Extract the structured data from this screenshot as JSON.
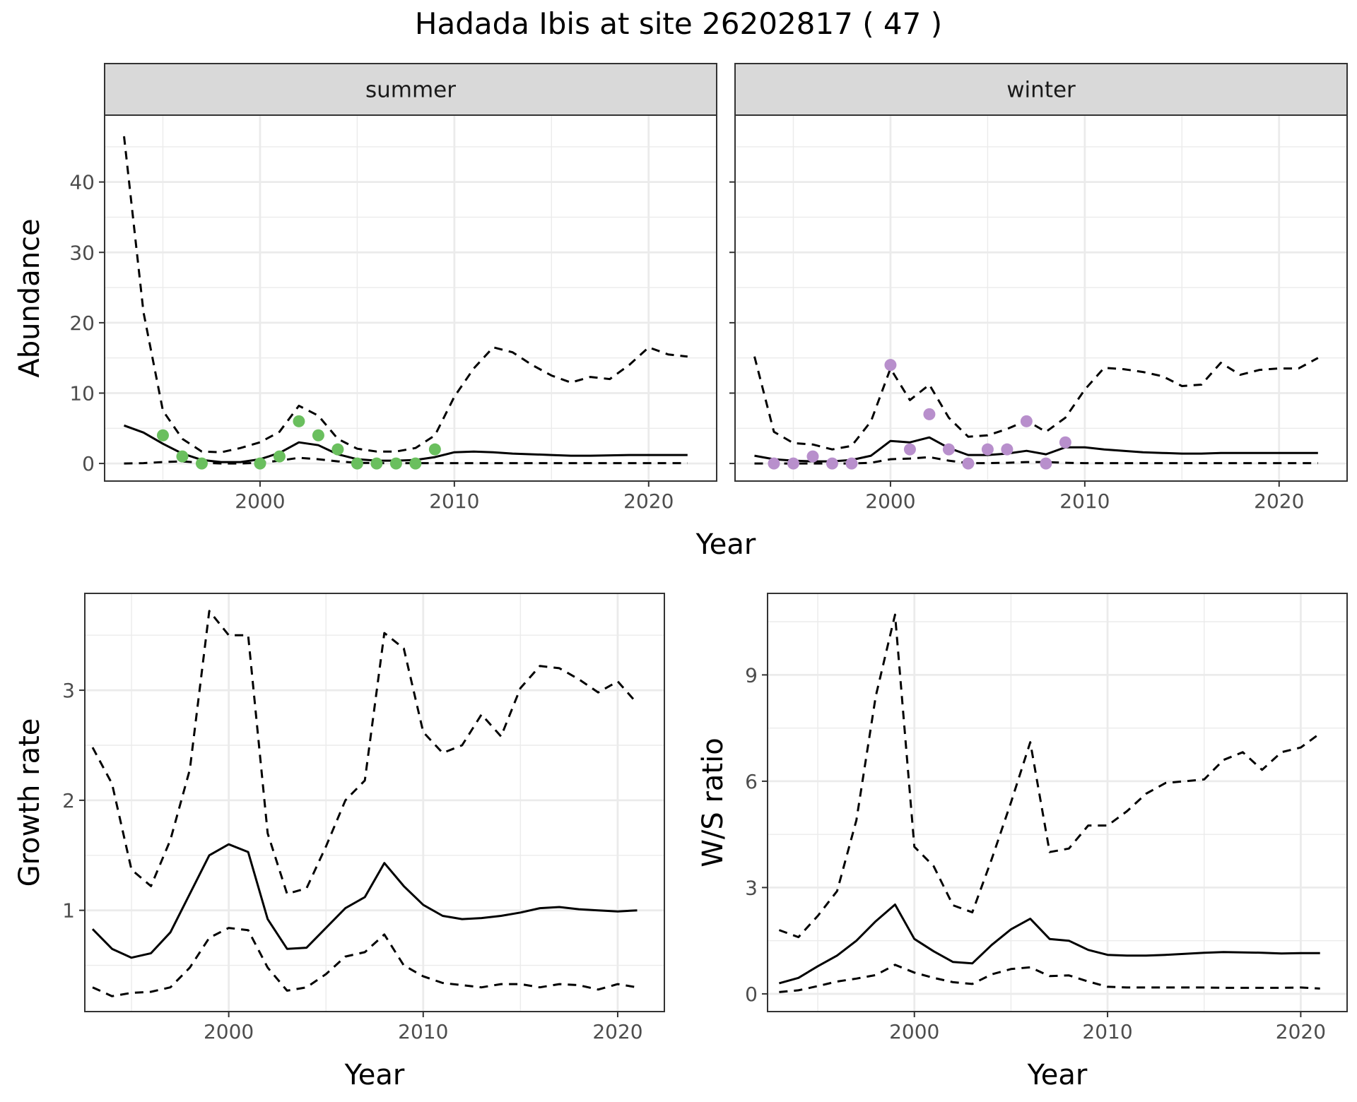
{
  "title": "Hadada Ibis at site 26202817 ( 47 )",
  "colors": {
    "summer_points": "#6abf5e",
    "winter_points": "#b88fcc",
    "lines": "#000000",
    "strip_background": "#d9d9d9",
    "grid": "#ebebeb"
  },
  "chart_data": [
    {
      "type": "line",
      "facet": "summer",
      "xlabel": "Year",
      "ylabel": "Abundance",
      "xlim": [
        1992,
        2023.5
      ],
      "ylim": [
        -2.5,
        49.5
      ],
      "xticks": [
        2000,
        2010,
        2020
      ],
      "yticks": [
        0,
        10,
        20,
        30,
        40
      ],
      "grid": true,
      "series": [
        {
          "role": "estimate",
          "style": "solid",
          "x": [
            1993,
            1994,
            1995,
            1996,
            1997,
            1998,
            1999,
            2000,
            2001,
            2002,
            2003,
            2004,
            2005,
            2006,
            2007,
            2008,
            2009,
            2010,
            2011,
            2012,
            2013,
            2014,
            2015,
            2016,
            2017,
            2018,
            2019,
            2020,
            2021,
            2022
          ],
          "y": [
            5.4,
            4.4,
            2.8,
            1.4,
            0.5,
            0.2,
            0.2,
            0.6,
            1.5,
            3.0,
            2.6,
            1.3,
            0.6,
            0.4,
            0.4,
            0.5,
            0.9,
            1.6,
            1.7,
            1.6,
            1.4,
            1.3,
            1.2,
            1.1,
            1.1,
            1.15,
            1.2,
            1.2,
            1.2,
            1.2
          ]
        },
        {
          "role": "upper",
          "style": "dashed",
          "x": [
            1993,
            1994,
            1995,
            1996,
            1997,
            1998,
            1999,
            2000,
            2001,
            2002,
            2003,
            2004,
            2005,
            2006,
            2007,
            2008,
            2009,
            2010,
            2011,
            2012,
            2013,
            2014,
            2015,
            2016,
            2017,
            2018,
            2019,
            2020,
            2021,
            2022
          ],
          "y": [
            46.5,
            21.5,
            7.5,
            3.5,
            1.7,
            1.6,
            2.2,
            3.0,
            4.5,
            8.2,
            6.8,
            3.5,
            2.1,
            1.7,
            1.7,
            2.2,
            4.0,
            9.5,
            13.5,
            16.5,
            15.8,
            14.0,
            12.5,
            11.5,
            12.3,
            12.0,
            14.0,
            16.5,
            15.5,
            15.2
          ]
        },
        {
          "role": "lower",
          "style": "dashed",
          "x": [
            1993,
            1994,
            1995,
            1996,
            1997,
            1998,
            1999,
            2000,
            2001,
            2002,
            2003,
            2004,
            2005,
            2006,
            2007,
            2008,
            2009,
            2010,
            2011,
            2012,
            2013,
            2014,
            2015,
            2016,
            2017,
            2018,
            2019,
            2020,
            2021,
            2022
          ],
          "y": [
            0,
            0.05,
            0.2,
            0.3,
            0.1,
            0,
            0,
            0.1,
            0.4,
            0.8,
            0.6,
            0.3,
            0.1,
            0.05,
            0.05,
            0.05,
            0.05,
            0.05,
            0.05,
            0.05,
            0.05,
            0.05,
            0.05,
            0.05,
            0.05,
            0.05,
            0.05,
            0.05,
            0.05,
            0.05
          ]
        }
      ],
      "points": {
        "x": [
          1995,
          1996,
          1997,
          2000,
          2001,
          2002,
          2003,
          2004,
          2005,
          2006,
          2007,
          2008,
          2009
        ],
        "y": [
          4,
          1,
          0,
          0,
          1,
          6,
          4,
          2,
          0,
          0,
          0,
          0,
          2
        ]
      }
    },
    {
      "type": "line",
      "facet": "winter",
      "xlabel": "Year",
      "ylabel": "Abundance",
      "xlim": [
        1992,
        2023.5
      ],
      "ylim": [
        -2.5,
        49.5
      ],
      "xticks": [
        2000,
        2010,
        2020
      ],
      "yticks": [
        0,
        10,
        20,
        30,
        40
      ],
      "grid": true,
      "series": [
        {
          "role": "estimate",
          "style": "solid",
          "x": [
            1993,
            1994,
            1995,
            1996,
            1997,
            1998,
            1999,
            2000,
            2001,
            2002,
            2003,
            2004,
            2005,
            2006,
            2007,
            2008,
            2009,
            2010,
            2011,
            2012,
            2013,
            2014,
            2015,
            2016,
            2017,
            2018,
            2019,
            2020,
            2021,
            2022
          ],
          "y": [
            1.1,
            0.6,
            0.4,
            0.3,
            0.3,
            0.5,
            1.1,
            3.2,
            3.0,
            3.7,
            2.2,
            1.2,
            1.2,
            1.4,
            1.8,
            1.3,
            2.3,
            2.3,
            2.0,
            1.8,
            1.6,
            1.5,
            1.4,
            1.4,
            1.5,
            1.5,
            1.5,
            1.5,
            1.5,
            1.5
          ]
        },
        {
          "role": "upper",
          "style": "dashed",
          "x": [
            1993,
            1994,
            1995,
            1996,
            1997,
            1998,
            1999,
            2000,
            2001,
            2002,
            2003,
            2004,
            2005,
            2006,
            2007,
            2008,
            2009,
            2010,
            2011,
            2012,
            2013,
            2014,
            2015,
            2016,
            2017,
            2018,
            2019,
            2020,
            2021,
            2022
          ],
          "y": [
            15.2,
            4.5,
            2.9,
            2.7,
            2.0,
            2.5,
            6.0,
            13.5,
            9.0,
            11.2,
            6.5,
            3.8,
            4.0,
            4.9,
            6.1,
            4.5,
            6.5,
            10.5,
            13.6,
            13.4,
            13.0,
            12.4,
            11.0,
            11.2,
            14.3,
            12.6,
            13.3,
            13.5,
            13.5,
            15.0
          ]
        },
        {
          "role": "lower",
          "style": "dashed",
          "x": [
            1993,
            1994,
            1995,
            1996,
            1997,
            1998,
            1999,
            2000,
            2001,
            2002,
            2003,
            2004,
            2005,
            2006,
            2007,
            2008,
            2009,
            2010,
            2011,
            2012,
            2013,
            2014,
            2015,
            2016,
            2017,
            2018,
            2019,
            2020,
            2021,
            2022
          ],
          "y": [
            0,
            0,
            0,
            0,
            0,
            0,
            0.1,
            0.6,
            0.7,
            0.9,
            0.4,
            0.05,
            0.05,
            0.1,
            0.2,
            0.2,
            0.1,
            0.05,
            0.05,
            0.05,
            0.05,
            0.05,
            0.05,
            0.05,
            0.05,
            0.05,
            0.05,
            0.05,
            0.05,
            0.05
          ]
        }
      ],
      "points": {
        "x": [
          1994,
          1995,
          1996,
          1997,
          1998,
          2000,
          2001,
          2002,
          2003,
          2004,
          2005,
          2006,
          2007,
          2008,
          2009
        ],
        "y": [
          0,
          0,
          1,
          0,
          0,
          14,
          2,
          7,
          2,
          0,
          2,
          2,
          6,
          0,
          3
        ]
      }
    },
    {
      "type": "line",
      "xlabel": "Year",
      "ylabel": "Growth rate",
      "xlim": [
        1992.6,
        2022.4
      ],
      "ylim": [
        0.08,
        3.88
      ],
      "xticks": [
        2000,
        2010,
        2020
      ],
      "yticks": [
        1,
        2,
        3
      ],
      "grid": true,
      "series": [
        {
          "role": "estimate",
          "style": "solid",
          "x": [
            1993,
            1994,
            1995,
            1996,
            1997,
            1998,
            1999,
            2000,
            2001,
            2002,
            2003,
            2004,
            2005,
            2006,
            2007,
            2008,
            2009,
            2010,
            2011,
            2012,
            2013,
            2014,
            2015,
            2016,
            2017,
            2018,
            2019,
            2020,
            2021
          ],
          "y": [
            0.83,
            0.65,
            0.57,
            0.61,
            0.8,
            1.15,
            1.5,
            1.6,
            1.53,
            0.92,
            0.65,
            0.66,
            0.84,
            1.02,
            1.12,
            1.43,
            1.22,
            1.05,
            0.95,
            0.92,
            0.93,
            0.95,
            0.98,
            1.02,
            1.03,
            1.01,
            1.0,
            0.99,
            1.0
          ]
        },
        {
          "role": "upper",
          "style": "dashed",
          "x": [
            1993,
            1994,
            1995,
            1996,
            1997,
            1998,
            1999,
            2000,
            2001,
            2002,
            2003,
            2004,
            2005,
            2006,
            2007,
            2008,
            2009,
            2010,
            2011,
            2012,
            2013,
            2014,
            2015,
            2016,
            2017,
            2018,
            2019,
            2020,
            2021
          ],
          "y": [
            2.48,
            2.15,
            1.37,
            1.22,
            1.64,
            2.28,
            3.72,
            3.5,
            3.5,
            1.7,
            1.15,
            1.2,
            1.58,
            2.0,
            2.18,
            3.52,
            3.38,
            2.62,
            2.43,
            2.5,
            2.78,
            2.58,
            3.02,
            3.22,
            3.2,
            3.1,
            2.98,
            3.08,
            2.88
          ]
        },
        {
          "role": "lower",
          "style": "dashed",
          "x": [
            1993,
            1994,
            1995,
            1996,
            1997,
            1998,
            1999,
            2000,
            2001,
            2002,
            2003,
            2004,
            2005,
            2006,
            2007,
            2008,
            2009,
            2010,
            2011,
            2012,
            2013,
            2014,
            2015,
            2016,
            2017,
            2018,
            2019,
            2020,
            2021
          ],
          "y": [
            0.3,
            0.22,
            0.25,
            0.26,
            0.3,
            0.48,
            0.75,
            0.84,
            0.82,
            0.48,
            0.27,
            0.3,
            0.42,
            0.58,
            0.62,
            0.78,
            0.5,
            0.4,
            0.34,
            0.32,
            0.3,
            0.33,
            0.33,
            0.3,
            0.33,
            0.32,
            0.28,
            0.33,
            0.3
          ]
        }
      ]
    },
    {
      "type": "line",
      "xlabel": "Year",
      "ylabel": "W/S ratio",
      "xlim": [
        1992.4,
        2022.4
      ],
      "ylim": [
        -0.5,
        11.3
      ],
      "xticks": [
        2000,
        2010,
        2020
      ],
      "yticks": [
        0,
        3,
        6,
        9
      ],
      "grid": true,
      "series": [
        {
          "role": "estimate",
          "style": "solid",
          "x": [
            1993,
            1994,
            1995,
            1996,
            1997,
            1998,
            1999,
            2000,
            2001,
            2002,
            2003,
            2004,
            2005,
            2006,
            2007,
            2008,
            2009,
            2010,
            2011,
            2012,
            2013,
            2014,
            2015,
            2016,
            2017,
            2018,
            2019,
            2020,
            2021
          ],
          "y": [
            0.3,
            0.45,
            0.78,
            1.08,
            1.5,
            2.05,
            2.52,
            1.55,
            1.2,
            0.9,
            0.86,
            1.38,
            1.82,
            2.12,
            1.55,
            1.5,
            1.24,
            1.1,
            1.08,
            1.08,
            1.1,
            1.13,
            1.16,
            1.18,
            1.17,
            1.16,
            1.14,
            1.15,
            1.15
          ]
        },
        {
          "role": "upper",
          "style": "dashed",
          "x": [
            1993,
            1994,
            1995,
            1996,
            1997,
            1998,
            1999,
            2000,
            2001,
            2002,
            2003,
            2004,
            2005,
            2006,
            2007,
            2008,
            2009,
            2010,
            2011,
            2012,
            2013,
            2014,
            2015,
            2016,
            2017,
            2018,
            2019,
            2020,
            2021
          ],
          "y": [
            1.8,
            1.6,
            2.2,
            2.9,
            4.9,
            8.4,
            10.7,
            4.15,
            3.6,
            2.5,
            2.3,
            3.8,
            5.4,
            7.1,
            4.0,
            4.1,
            4.75,
            4.75,
            5.15,
            5.65,
            5.95,
            6.0,
            6.05,
            6.6,
            6.82,
            6.32,
            6.82,
            6.95,
            7.35
          ]
        },
        {
          "role": "lower",
          "style": "dashed",
          "x": [
            1993,
            1994,
            1995,
            1996,
            1997,
            1998,
            1999,
            2000,
            2001,
            2002,
            2003,
            2004,
            2005,
            2006,
            2007,
            2008,
            2009,
            2010,
            2011,
            2012,
            2013,
            2014,
            2015,
            2016,
            2017,
            2018,
            2019,
            2020,
            2021
          ],
          "y": [
            0.05,
            0.1,
            0.22,
            0.35,
            0.43,
            0.53,
            0.82,
            0.6,
            0.45,
            0.33,
            0.28,
            0.55,
            0.7,
            0.75,
            0.5,
            0.52,
            0.35,
            0.2,
            0.18,
            0.18,
            0.18,
            0.18,
            0.18,
            0.17,
            0.17,
            0.17,
            0.17,
            0.18,
            0.15
          ]
        }
      ]
    }
  ]
}
